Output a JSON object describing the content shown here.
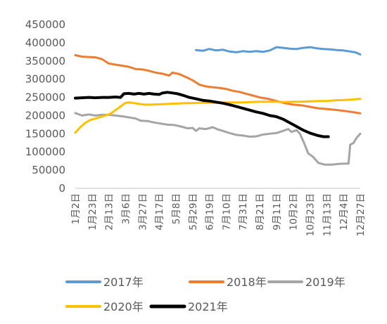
{
  "chart_data": {
    "type": "line",
    "x_labels": [
      "1月2日",
      "1月23日",
      "2月13日",
      "3月6日",
      "3月27日",
      "4月17日",
      "5月8日",
      "5月29日",
      "6月19日",
      "7月10日",
      "7月31日",
      "8月21日",
      "9月11日",
      "10月2日",
      "10月23日",
      "11月13日",
      "12月4日",
      "12月27日"
    ],
    "y_ticks": [
      0,
      50000,
      100000,
      150000,
      200000,
      250000,
      300000,
      350000,
      400000,
      450000
    ],
    "ylim": [
      0,
      450000
    ],
    "xlim": [
      0,
      17
    ],
    "grid": false,
    "legend_position": "bottom",
    "series": [
      {
        "name": "2017年",
        "color": "#5b9bd5",
        "points": [
          [
            7.2,
            380000
          ],
          [
            7.6,
            378000
          ],
          [
            8.0,
            383000
          ],
          [
            8.4,
            379000
          ],
          [
            8.8,
            381000
          ],
          [
            9.2,
            376000
          ],
          [
            9.6,
            374000
          ],
          [
            10.0,
            377000
          ],
          [
            10.4,
            375000
          ],
          [
            10.8,
            377000
          ],
          [
            11.2,
            375000
          ],
          [
            11.6,
            379000
          ],
          [
            12.0,
            388000
          ],
          [
            12.4,
            386000
          ],
          [
            12.8,
            384000
          ],
          [
            13.2,
            383000
          ],
          [
            13.6,
            386000
          ],
          [
            14.0,
            388000
          ],
          [
            14.4,
            385000
          ],
          [
            14.8,
            383000
          ],
          [
            15.2,
            382000
          ],
          [
            15.6,
            380000
          ],
          [
            16.0,
            379000
          ],
          [
            16.4,
            376000
          ],
          [
            16.7,
            374000
          ],
          [
            17.0,
            368000
          ]
        ]
      },
      {
        "name": "2018年",
        "color": "#ed7d31",
        "points": [
          [
            0,
            366000
          ],
          [
            0.4,
            362000
          ],
          [
            0.8,
            361000
          ],
          [
            1.2,
            360000
          ],
          [
            1.6,
            355000
          ],
          [
            2.0,
            343000
          ],
          [
            2.4,
            340000
          ],
          [
            2.8,
            337000
          ],
          [
            3.2,
            334000
          ],
          [
            3.6,
            328000
          ],
          [
            4.0,
            327000
          ],
          [
            4.4,
            323000
          ],
          [
            4.8,
            318000
          ],
          [
            5.2,
            315000
          ],
          [
            5.6,
            310000
          ],
          [
            5.8,
            318000
          ],
          [
            6.2,
            314000
          ],
          [
            6.6,
            306000
          ],
          [
            7.0,
            297000
          ],
          [
            7.4,
            285000
          ],
          [
            7.8,
            280000
          ],
          [
            8.2,
            278000
          ],
          [
            8.6,
            276000
          ],
          [
            9.0,
            273000
          ],
          [
            9.4,
            268000
          ],
          [
            9.8,
            265000
          ],
          [
            10.2,
            260000
          ],
          [
            10.6,
            255000
          ],
          [
            11.0,
            250000
          ],
          [
            11.5,
            246000
          ],
          [
            12.0,
            240000
          ],
          [
            12.5,
            234000
          ],
          [
            13.0,
            230000
          ],
          [
            13.5,
            228000
          ],
          [
            14.0,
            224000
          ],
          [
            14.5,
            220000
          ],
          [
            15.0,
            218000
          ],
          [
            15.5,
            216000
          ],
          [
            16.0,
            213000
          ],
          [
            16.5,
            210000
          ],
          [
            17.0,
            206000
          ]
        ]
      },
      {
        "name": "2019年",
        "color": "#a5a5a5",
        "points": [
          [
            0,
            207000
          ],
          [
            0.4,
            200000
          ],
          [
            0.8,
            203000
          ],
          [
            1.2,
            200000
          ],
          [
            1.6,
            202000
          ],
          [
            2.0,
            202000
          ],
          [
            2.4,
            200000
          ],
          [
            2.8,
            198000
          ],
          [
            3.2,
            195000
          ],
          [
            3.6,
            192000
          ],
          [
            3.9,
            186000
          ],
          [
            4.3,
            185000
          ],
          [
            4.7,
            181000
          ],
          [
            5.1,
            178000
          ],
          [
            5.5,
            175000
          ],
          [
            5.9,
            174000
          ],
          [
            6.3,
            170000
          ],
          [
            6.7,
            165000
          ],
          [
            7.0,
            166000
          ],
          [
            7.2,
            158000
          ],
          [
            7.4,
            165000
          ],
          [
            7.8,
            163000
          ],
          [
            8.2,
            168000
          ],
          [
            8.5,
            162000
          ],
          [
            8.8,
            158000
          ],
          [
            9.2,
            152000
          ],
          [
            9.6,
            147000
          ],
          [
            10.0,
            145000
          ],
          [
            10.4,
            142000
          ],
          [
            10.8,
            143000
          ],
          [
            11.2,
            148000
          ],
          [
            11.6,
            150000
          ],
          [
            12.0,
            152000
          ],
          [
            12.4,
            158000
          ],
          [
            12.7,
            163000
          ],
          [
            12.9,
            155000
          ],
          [
            13.2,
            160000
          ],
          [
            13.4,
            150000
          ],
          [
            13.6,
            130000
          ],
          [
            13.9,
            96000
          ],
          [
            14.2,
            86000
          ],
          [
            14.5,
            70000
          ],
          [
            14.9,
            65000
          ],
          [
            15.3,
            65000
          ],
          [
            15.7,
            67000
          ],
          [
            16.1,
            68000
          ],
          [
            16.3,
            68000
          ],
          [
            16.4,
            120000
          ],
          [
            16.6,
            125000
          ],
          [
            16.8,
            140000
          ],
          [
            17.0,
            150000
          ]
        ]
      },
      {
        "name": "2020年",
        "color": "#ffc000",
        "points": [
          [
            0,
            153000
          ],
          [
            0.3,
            168000
          ],
          [
            0.6,
            180000
          ],
          [
            0.9,
            188000
          ],
          [
            1.3,
            193000
          ],
          [
            1.7,
            199000
          ],
          [
            2.1,
            205000
          ],
          [
            2.4,
            215000
          ],
          [
            2.7,
            225000
          ],
          [
            3.0,
            235000
          ],
          [
            3.3,
            236000
          ],
          [
            3.7,
            233000
          ],
          [
            4.1,
            230000
          ],
          [
            4.5,
            230000
          ],
          [
            5.0,
            231000
          ],
          [
            5.5,
            232000
          ],
          [
            6.0,
            233000
          ],
          [
            6.5,
            234000
          ],
          [
            7.0,
            234000
          ],
          [
            7.5,
            235000
          ],
          [
            8.0,
            235000
          ],
          [
            8.5,
            235000
          ],
          [
            9.0,
            236000
          ],
          [
            9.5,
            236000
          ],
          [
            10.0,
            236000
          ],
          [
            10.5,
            237000
          ],
          [
            11.0,
            238000
          ],
          [
            11.5,
            238000
          ],
          [
            12.0,
            238000
          ],
          [
            12.5,
            237000
          ],
          [
            13.0,
            238000
          ],
          [
            13.5,
            238000
          ],
          [
            14.0,
            239000
          ],
          [
            14.5,
            240000
          ],
          [
            15.0,
            240000
          ],
          [
            15.5,
            242000
          ],
          [
            16.0,
            243000
          ],
          [
            16.5,
            244000
          ],
          [
            17.0,
            246000
          ]
        ]
      },
      {
        "name": "2021年",
        "color": "#000000",
        "points": [
          [
            0,
            248000
          ],
          [
            0.4,
            249000
          ],
          [
            0.8,
            250000
          ],
          [
            1.2,
            249000
          ],
          [
            1.6,
            250000
          ],
          [
            2.0,
            250000
          ],
          [
            2.4,
            251000
          ],
          [
            2.7,
            250000
          ],
          [
            2.9,
            260000
          ],
          [
            3.2,
            261000
          ],
          [
            3.5,
            259000
          ],
          [
            3.8,
            261000
          ],
          [
            4.1,
            259000
          ],
          [
            4.4,
            261000
          ],
          [
            4.7,
            259000
          ],
          [
            5.0,
            258000
          ],
          [
            5.2,
            262000
          ],
          [
            5.5,
            264000
          ],
          [
            5.8,
            262000
          ],
          [
            6.1,
            260000
          ],
          [
            6.4,
            256000
          ],
          [
            6.8,
            250000
          ],
          [
            7.2,
            246000
          ],
          [
            7.6,
            242000
          ],
          [
            8.0,
            240000
          ],
          [
            8.4,
            237000
          ],
          [
            8.8,
            234000
          ],
          [
            9.2,
            230000
          ],
          [
            9.6,
            225000
          ],
          [
            10.0,
            220000
          ],
          [
            10.4,
            215000
          ],
          [
            10.8,
            210000
          ],
          [
            11.2,
            206000
          ],
          [
            11.6,
            200000
          ],
          [
            12.0,
            197000
          ],
          [
            12.4,
            190000
          ],
          [
            12.8,
            180000
          ],
          [
            13.2,
            170000
          ],
          [
            13.6,
            160000
          ],
          [
            14.0,
            152000
          ],
          [
            14.4,
            146000
          ],
          [
            14.8,
            142000
          ],
          [
            15.1,
            142000
          ]
        ]
      }
    ]
  }
}
